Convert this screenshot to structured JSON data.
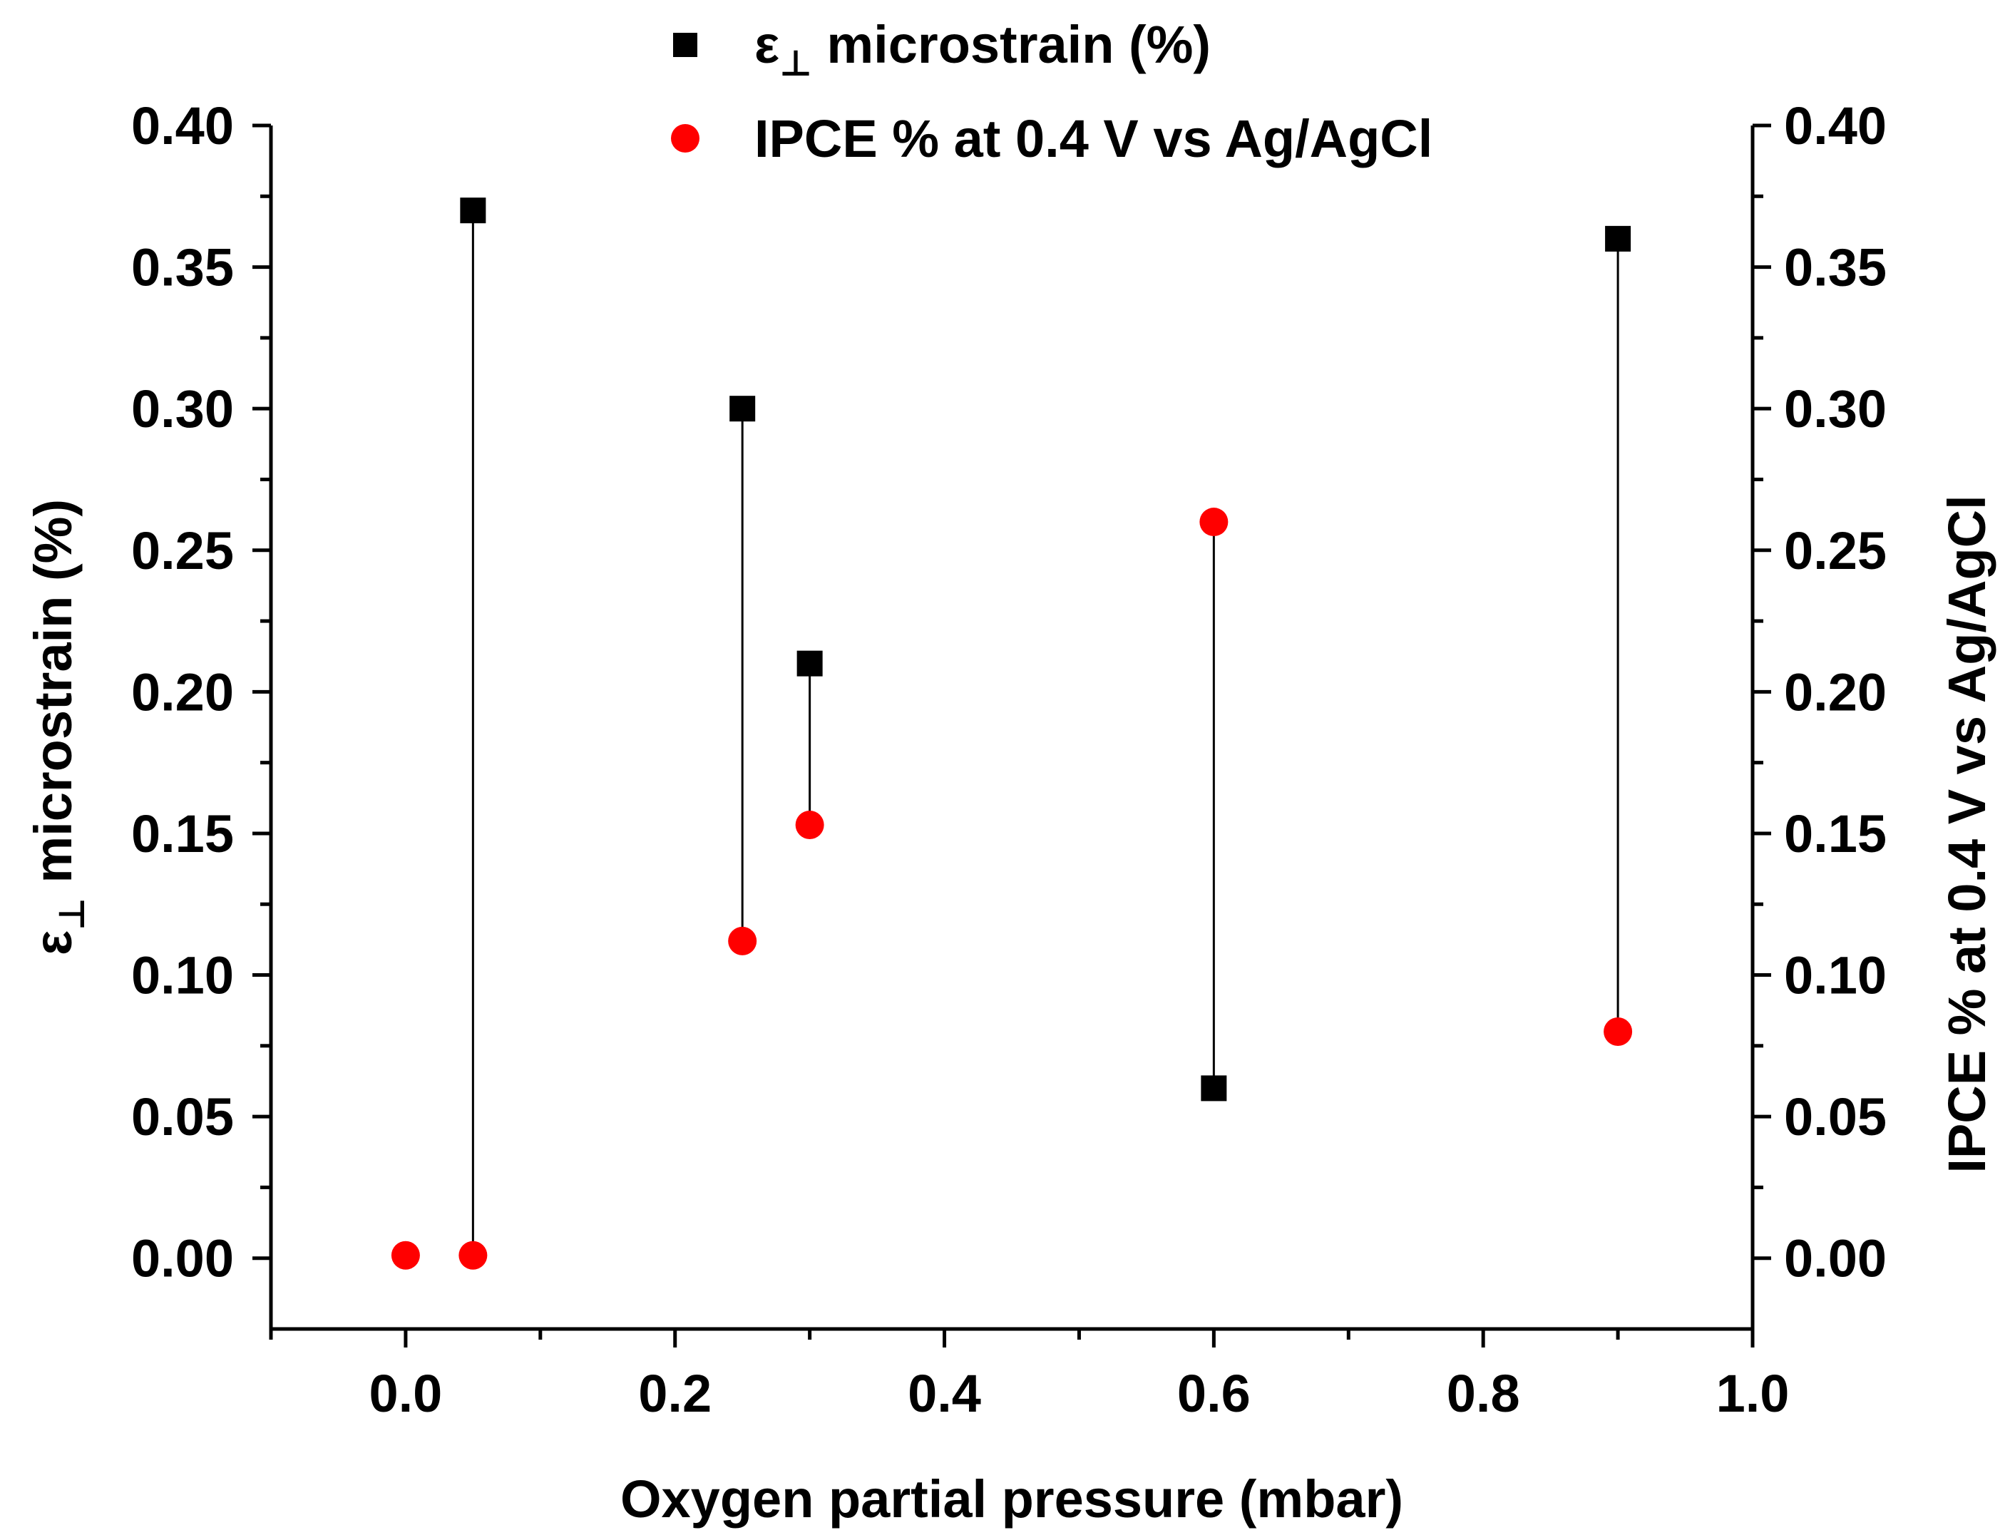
{
  "chart_data": {
    "type": "scatter",
    "x_axis": {
      "label": "Oxygen partial pressure (mbar)",
      "range": [
        -0.1,
        1.0
      ],
      "ticks": [
        0.0,
        0.2,
        0.4,
        0.6,
        0.8,
        1.0
      ],
      "tick_labels": [
        "0.0",
        "0.2",
        "0.4",
        "0.6",
        "0.8",
        "1.0"
      ],
      "minor_ticks": [
        -0.1,
        0.1,
        0.3,
        0.5,
        0.7,
        0.9
      ]
    },
    "y_left_axis": {
      "label_symbol": "ε",
      "label_subscript": "⊥",
      "label_rest": " microstrain (%)",
      "range": [
        -0.025,
        0.4
      ],
      "ticks": [
        0.0,
        0.05,
        0.1,
        0.15,
        0.2,
        0.25,
        0.3,
        0.35,
        0.4
      ],
      "tick_labels": [
        "0.00",
        "0.05",
        "0.10",
        "0.15",
        "0.20",
        "0.25",
        "0.30",
        "0.35",
        "0.40"
      ]
    },
    "y_right_axis": {
      "label": "IPCE % at 0.4 V vs Ag/AgCl",
      "range": [
        -0.025,
        0.4
      ],
      "ticks": [
        0.0,
        0.05,
        0.1,
        0.15,
        0.2,
        0.25,
        0.3,
        0.35,
        0.4
      ],
      "tick_labels": [
        "0.00",
        "0.05",
        "0.10",
        "0.15",
        "0.20",
        "0.25",
        "0.30",
        "0.35",
        "0.40"
      ]
    },
    "series": [
      {
        "name": "ε⊥ microstrain (%)",
        "legend_symbol": "ε",
        "legend_subscript": "⊥",
        "legend_rest": " microstrain (%)",
        "marker": "square",
        "color": "#000000",
        "axis": "left",
        "x": [
          0.05,
          0.25,
          0.3,
          0.6,
          0.9
        ],
        "y": [
          0.37,
          0.3,
          0.21,
          0.06,
          0.36
        ]
      },
      {
        "name": "IPCE % at 0.4 V vs Ag/AgCl",
        "marker": "circle",
        "color": "#ff0000",
        "axis": "right",
        "x": [
          0.0,
          0.05,
          0.25,
          0.3,
          0.6,
          0.9
        ],
        "y": [
          0.001,
          0.001,
          0.112,
          0.153,
          0.26,
          0.08
        ]
      }
    ],
    "connectors": [
      {
        "x": 0.05,
        "y_from": 0.37,
        "y_to": 0.001
      },
      {
        "x": 0.25,
        "y_from": 0.3,
        "y_to": 0.112
      },
      {
        "x": 0.3,
        "y_from": 0.21,
        "y_to": 0.153
      },
      {
        "x": 0.6,
        "y_from": 0.06,
        "y_to": 0.26
      },
      {
        "x": 0.9,
        "y_from": 0.36,
        "y_to": 0.08
      }
    ],
    "legend_position": "top-center",
    "grid": false
  }
}
